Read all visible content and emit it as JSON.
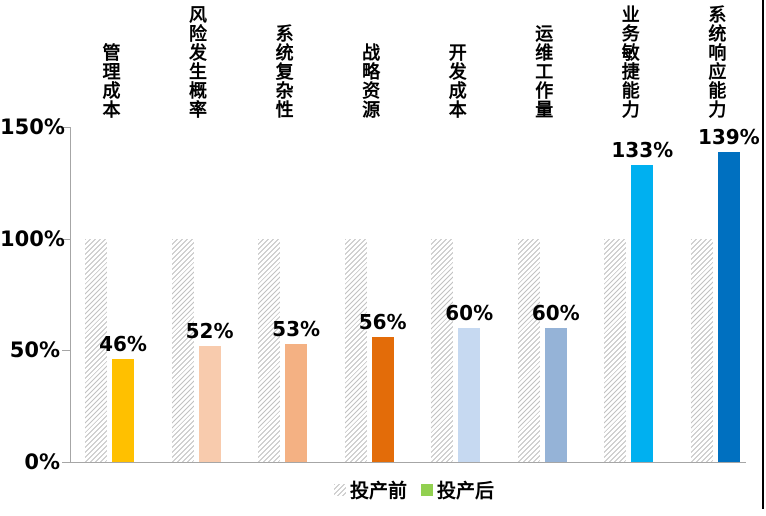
{
  "chart_data": {
    "type": "bar",
    "title": "",
    "categories": [
      "管理成本",
      "风险发生概率",
      "系统复杂性",
      "战略资源",
      "开发成本",
      "运维工作量",
      "业务敏捷能力",
      "系统响应能力"
    ],
    "series": [
      {
        "name": "投产前",
        "values": [
          100,
          100,
          100,
          100,
          100,
          100,
          100,
          100
        ],
        "fill": "hatched-gray"
      },
      {
        "name": "投产后",
        "values": [
          46,
          52,
          53,
          56,
          60,
          60,
          133,
          139
        ],
        "bar_colors": [
          "#FFC000",
          "#F8CBAD",
          "#F4B183",
          "#E36C09",
          "#C6D9F1",
          "#95B3D7",
          "#00B0F0",
          "#0070C0"
        ]
      }
    ],
    "data_labels": [
      "46%",
      "52%",
      "53%",
      "56%",
      "60%",
      "60%",
      "133%",
      "139%"
    ],
    "y_ticks": [
      {
        "value": 0,
        "label": "0%"
      },
      {
        "value": 50,
        "label": "50%"
      },
      {
        "value": 100,
        "label": "100%"
      },
      {
        "value": 150,
        "label": "150%"
      }
    ],
    "ylim": [
      0,
      150
    ],
    "grid": false,
    "legend_position": "bottom",
    "legend": [
      {
        "label": "投产前",
        "swatch": "hatched-gray"
      },
      {
        "label": "投产后",
        "swatch_color": "#92D050"
      }
    ],
    "hatch_color": "#c2c2c2",
    "axis_color": "#a6a6a6"
  }
}
